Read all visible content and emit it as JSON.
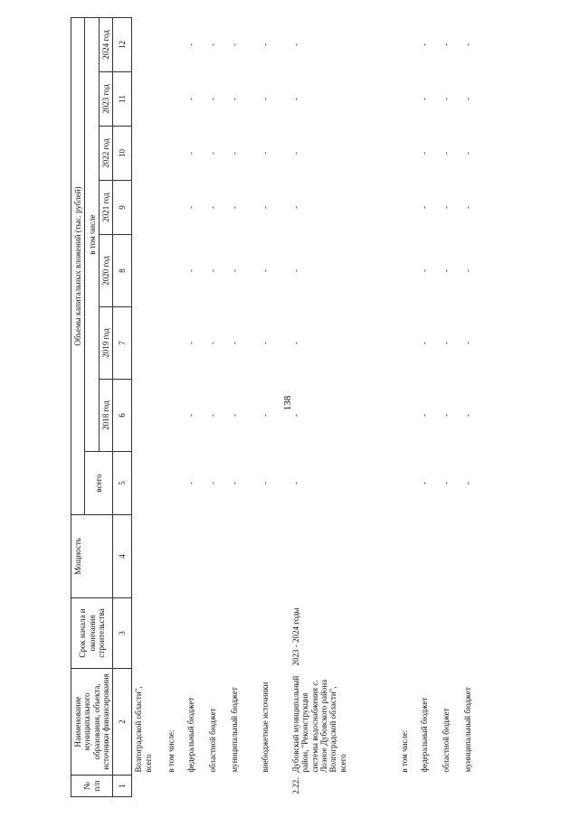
{
  "page_number": "138",
  "header": {
    "no": "№ п/п",
    "name": "Наименование муниципального образования, объекта, источники финансирования",
    "term": "Срок начала и окончания строительства",
    "power": "Мощность",
    "volumes": "Объемы капитальных вложений (тыс. рублей)",
    "total": "всего",
    "including": "в том числе",
    "years": [
      "2018 год",
      "2019 год",
      "2020 год",
      "2021 год",
      "2022 год",
      "2023 год",
      "2024 год"
    ]
  },
  "col_numbers": [
    "1",
    "2",
    "3",
    "4",
    "5",
    "6",
    "7",
    "8",
    "9",
    "10",
    "11",
    "12"
  ],
  "rows": [
    {
      "no": "",
      "name": "Волгоградской области\", всего",
      "term": "",
      "power": "",
      "values": [
        "",
        "",
        "",
        "",
        "",
        "",
        "",
        ""
      ]
    },
    {
      "no": "",
      "name": "в том числе:",
      "term": "",
      "power": "",
      "values": [
        "",
        "",
        "",
        "",
        "",
        "",
        "",
        ""
      ]
    },
    {
      "no": "",
      "name": "федеральный бюджет",
      "term": "",
      "power": "",
      "values": [
        "-",
        "-",
        "-",
        "-",
        "-",
        "-",
        "-",
        "-"
      ]
    },
    {
      "no": "",
      "name": "областной бюджет",
      "term": "",
      "power": "",
      "values": [
        "-",
        "-",
        "-",
        "-",
        "-",
        "-",
        "-",
        "-"
      ]
    },
    {
      "no": "",
      "name": "муниципальный бюджет",
      "term": "",
      "power": "",
      "values": [
        "-",
        "-",
        "-",
        "-",
        "-",
        "-",
        "-",
        "-"
      ]
    },
    {
      "no": "",
      "name": "внебюджетные источники",
      "term": "",
      "power": "",
      "values": [
        "-",
        "-",
        "-",
        "-",
        "-",
        "-",
        "-",
        "-"
      ]
    },
    {
      "no": "2.22.",
      "name": "Дубовский муниципальный район, \"Реконструкция системы водоснабжения с. Лозное Дубовского района Волгоградской области\", всего",
      "term": "2023 - 2024 годы",
      "power": "",
      "values": [
        "-",
        "-",
        "-",
        "-",
        "-",
        "-",
        "-",
        "-"
      ]
    },
    {
      "no": "",
      "name": "в том числе:",
      "term": "",
      "power": "",
      "values": [
        "",
        "",
        "",
        "",
        "",
        "",
        "",
        ""
      ]
    },
    {
      "no": "",
      "name": "федеральный бюджет",
      "term": "",
      "power": "",
      "values": [
        "-",
        "-",
        "-",
        "-",
        "-",
        "-",
        "-",
        "-"
      ]
    },
    {
      "no": "",
      "name": "областной бюджет",
      "term": "",
      "power": "",
      "values": [
        "-",
        "-",
        "-",
        "-",
        "-",
        "-",
        "-",
        "-"
      ]
    },
    {
      "no": "",
      "name": "муниципальный бюджет",
      "term": "",
      "power": "",
      "values": [
        "-",
        "-",
        "-",
        "-",
        "-",
        "-",
        "-",
        "-"
      ]
    }
  ]
}
